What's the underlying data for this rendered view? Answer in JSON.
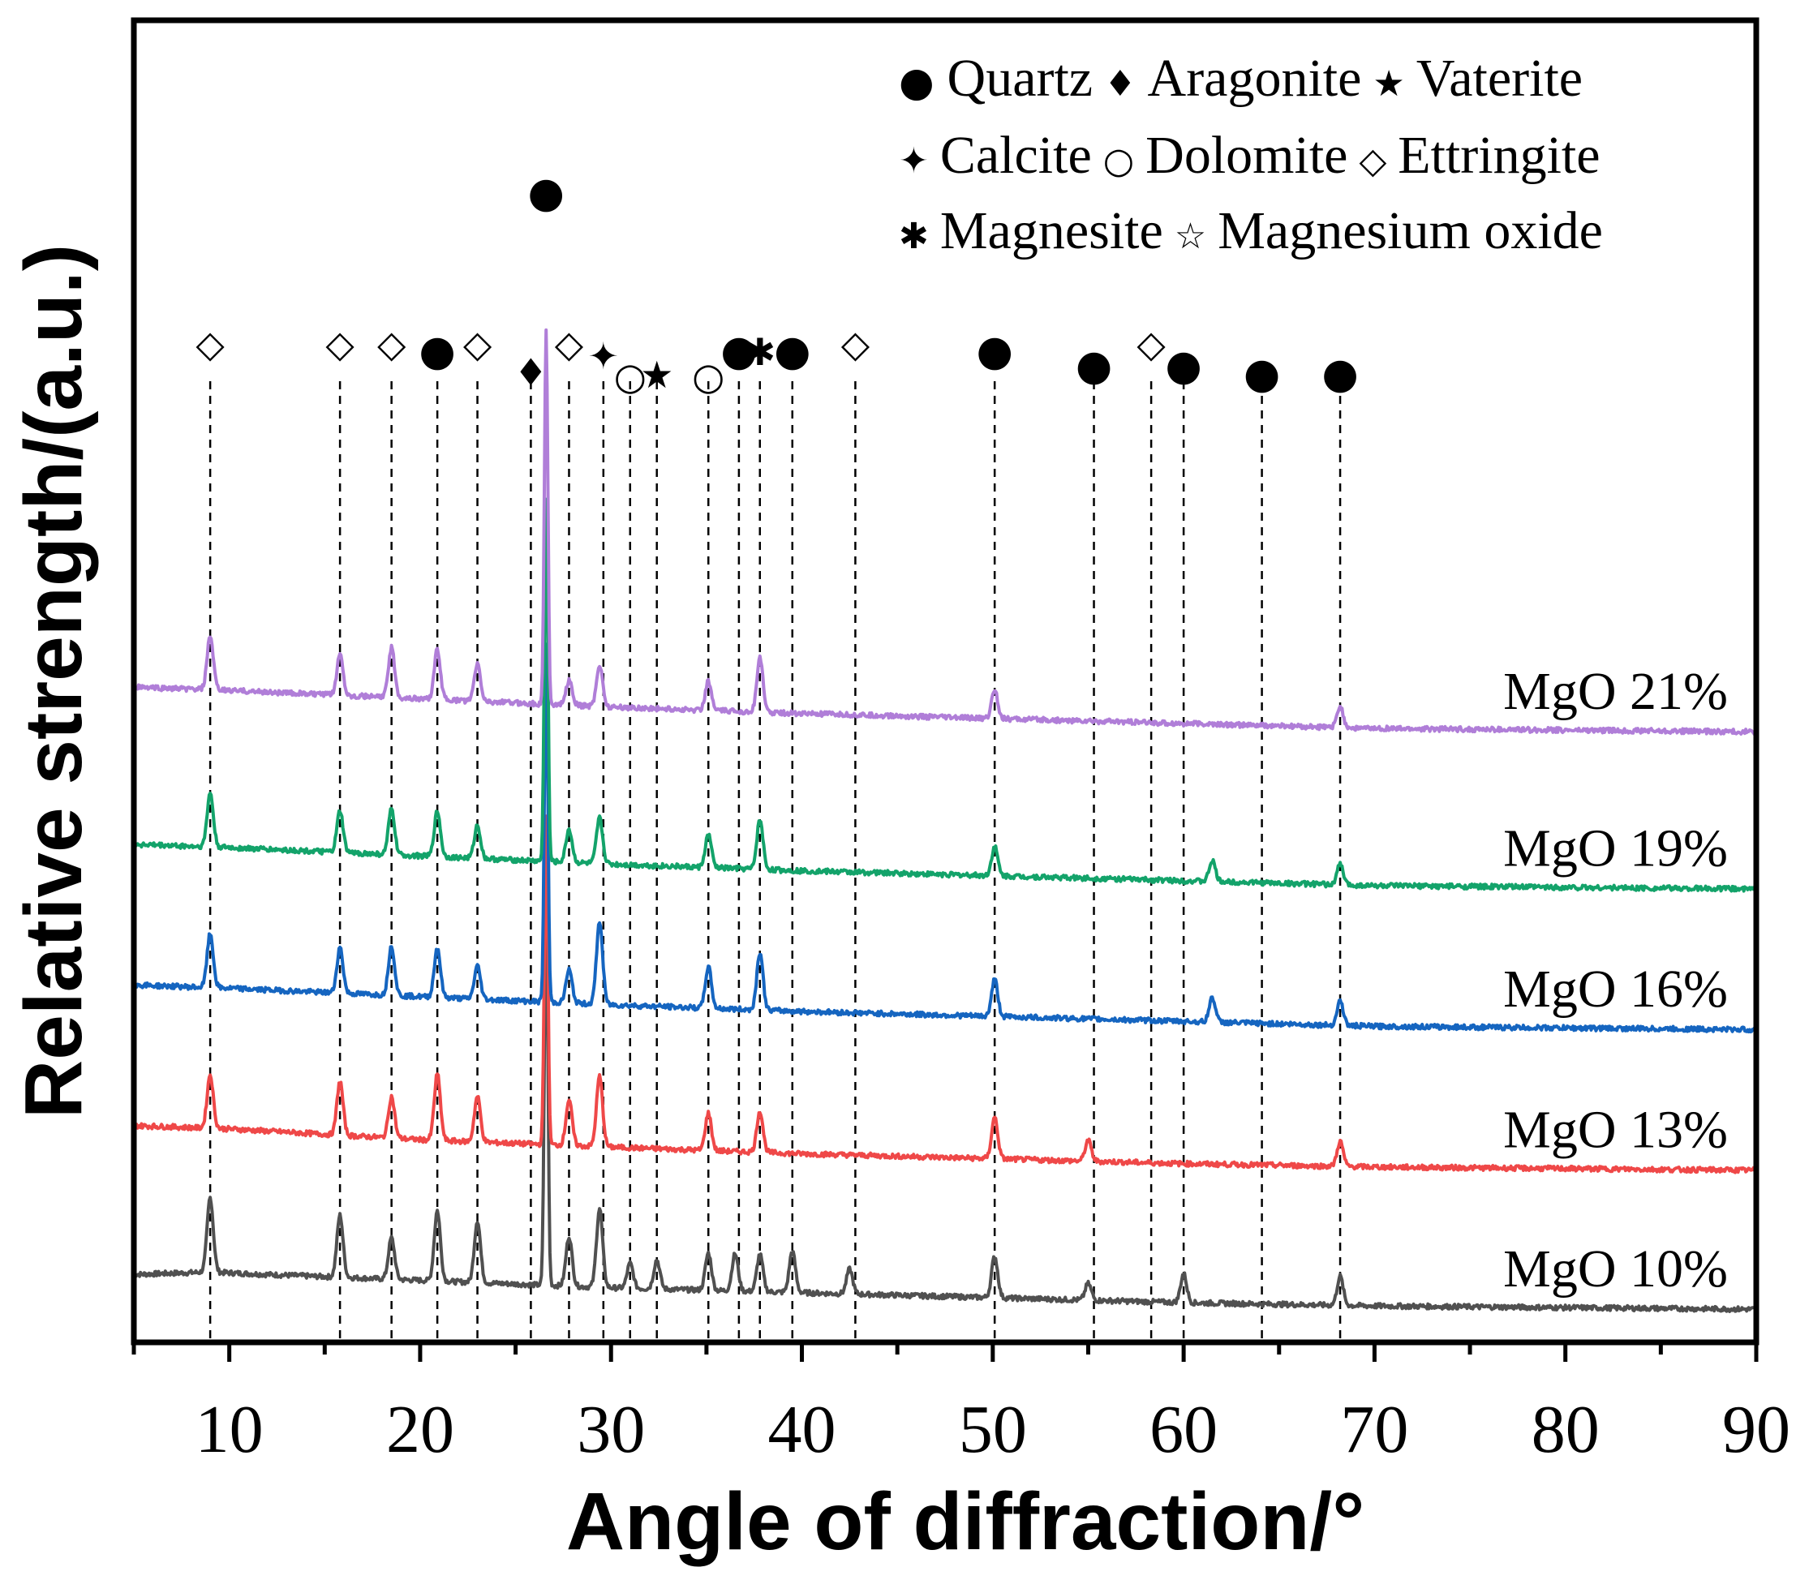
{
  "chart_data": {
    "type": "line",
    "title": "",
    "xlabel": "Angle of diffraction/°",
    "ylabel": "Relative strength/(a.u.)",
    "xlim": [
      5,
      90
    ],
    "xticks": [
      10,
      20,
      30,
      40,
      50,
      60,
      70,
      80,
      90
    ],
    "yticks": [],
    "grid": false,
    "y_units": "relative intensity, stacked with vertical offset",
    "series": [
      {
        "name": "MgO 10%",
        "color": "#505050",
        "offset": 0.3,
        "points": [
          [
            5,
            0.52
          ],
          [
            9,
            0.55
          ],
          [
            12,
            0.52
          ],
          [
            20,
            0.45
          ],
          [
            30,
            0.36
          ],
          [
            40,
            0.3
          ],
          [
            50,
            0.24
          ],
          [
            60,
            0.18
          ],
          [
            70,
            0.14
          ],
          [
            90,
            0.1
          ]
        ],
        "peaks": [
          [
            9.0,
            0.9
          ],
          [
            15.8,
            0.75
          ],
          [
            18.5,
            0.5
          ],
          [
            20.9,
            0.85
          ],
          [
            23.0,
            0.75
          ],
          [
            26.6,
            4.8
          ],
          [
            27.8,
            0.6
          ],
          [
            29.4,
            0.95
          ],
          [
            31.0,
            0.3
          ],
          [
            32.4,
            0.35
          ],
          [
            35.1,
            0.45
          ],
          [
            36.5,
            0.45
          ],
          [
            37.8,
            0.45
          ],
          [
            39.5,
            0.5
          ],
          [
            42.5,
            0.3
          ],
          [
            50.1,
            0.5
          ],
          [
            55.0,
            0.2
          ],
          [
            60.0,
            0.35
          ],
          [
            68.2,
            0.35
          ]
        ]
      },
      {
        "name": "MgO 13%",
        "color": "#ef4848",
        "offset": 2.0,
        "points": [
          [
            5,
            0.62
          ],
          [
            10,
            0.58
          ],
          [
            20,
            0.45
          ],
          [
            30,
            0.36
          ],
          [
            40,
            0.28
          ],
          [
            50,
            0.22
          ],
          [
            60,
            0.16
          ],
          [
            70,
            0.12
          ],
          [
            90,
            0.08
          ]
        ],
        "peaks": [
          [
            9.0,
            0.65
          ],
          [
            15.8,
            0.65
          ],
          [
            18.5,
            0.5
          ],
          [
            20.9,
            0.8
          ],
          [
            23.0,
            0.55
          ],
          [
            26.6,
            4.0
          ],
          [
            27.8,
            0.55
          ],
          [
            29.4,
            0.85
          ],
          [
            35.1,
            0.45
          ],
          [
            37.8,
            0.5
          ],
          [
            50.1,
            0.5
          ],
          [
            55.0,
            0.25
          ],
          [
            68.2,
            0.3
          ]
        ]
      },
      {
        "name": "MgO 16%",
        "color": "#1565c0",
        "offset": 3.7,
        "points": [
          [
            5,
            0.62
          ],
          [
            10,
            0.58
          ],
          [
            20,
            0.48
          ],
          [
            30,
            0.38
          ],
          [
            40,
            0.3
          ],
          [
            50,
            0.24
          ],
          [
            60,
            0.18
          ],
          [
            70,
            0.12
          ],
          [
            90,
            0.08
          ]
        ],
        "peaks": [
          [
            9.0,
            0.65
          ],
          [
            15.8,
            0.55
          ],
          [
            18.5,
            0.6
          ],
          [
            20.9,
            0.6
          ],
          [
            23.0,
            0.4
          ],
          [
            26.6,
            4.3
          ],
          [
            27.8,
            0.4
          ],
          [
            29.4,
            1.0
          ],
          [
            35.1,
            0.5
          ],
          [
            37.8,
            0.7
          ],
          [
            50.1,
            0.45
          ],
          [
            61.5,
            0.3
          ],
          [
            68.2,
            0.3
          ]
        ]
      },
      {
        "name": "MgO 19%",
        "color": "#13a36a",
        "offset": 5.4,
        "points": [
          [
            5,
            0.62
          ],
          [
            10,
            0.58
          ],
          [
            20,
            0.48
          ],
          [
            30,
            0.38
          ],
          [
            40,
            0.3
          ],
          [
            50,
            0.24
          ],
          [
            60,
            0.18
          ],
          [
            70,
            0.12
          ],
          [
            90,
            0.08
          ]
        ],
        "peaks": [
          [
            9.0,
            0.65
          ],
          [
            15.8,
            0.5
          ],
          [
            18.5,
            0.55
          ],
          [
            20.9,
            0.55
          ],
          [
            23.0,
            0.4
          ],
          [
            26.6,
            4.4
          ],
          [
            27.8,
            0.4
          ],
          [
            29.4,
            0.55
          ],
          [
            35.1,
            0.4
          ],
          [
            37.8,
            0.6
          ],
          [
            50.1,
            0.35
          ],
          [
            61.5,
            0.25
          ],
          [
            68.2,
            0.25
          ]
        ]
      },
      {
        "name": "MgO 21%",
        "color": "#b07ed8",
        "offset": 7.3,
        "points": [
          [
            5,
            0.62
          ],
          [
            10,
            0.58
          ],
          [
            20,
            0.48
          ],
          [
            30,
            0.38
          ],
          [
            40,
            0.3
          ],
          [
            50,
            0.24
          ],
          [
            60,
            0.18
          ],
          [
            70,
            0.12
          ],
          [
            90,
            0.08
          ]
        ],
        "peaks": [
          [
            9.0,
            0.65
          ],
          [
            15.8,
            0.5
          ],
          [
            18.5,
            0.6
          ],
          [
            20.9,
            0.6
          ],
          [
            23.0,
            0.45
          ],
          [
            26.6,
            4.5
          ],
          [
            27.8,
            0.3
          ],
          [
            29.4,
            0.5
          ],
          [
            35.1,
            0.35
          ],
          [
            37.8,
            0.65
          ],
          [
            50.1,
            0.35
          ],
          [
            68.2,
            0.25
          ]
        ]
      }
    ],
    "phase_lines_x": [
      9.0,
      15.8,
      18.5,
      20.9,
      23.0,
      25.8,
      27.8,
      29.6,
      31.0,
      32.4,
      35.1,
      36.7,
      37.8,
      39.5,
      42.8,
      50.1,
      55.3,
      58.3,
      60.0,
      64.1,
      68.2
    ],
    "phase_markers": [
      {
        "x": 9.0,
        "phase": "Ettringite",
        "symbol": "◇"
      },
      {
        "x": 15.8,
        "phase": "Ettringite",
        "symbol": "◇"
      },
      {
        "x": 18.5,
        "phase": "Ettringite",
        "symbol": "◇"
      },
      {
        "x": 20.9,
        "phase": "Quartz",
        "symbol": "●"
      },
      {
        "x": 23.0,
        "phase": "Ettringite",
        "symbol": "◇"
      },
      {
        "x": 25.8,
        "phase": "Aragonite",
        "symbol": "♦"
      },
      {
        "x": 26.6,
        "phase": "Quartz",
        "symbol": "●"
      },
      {
        "x": 27.8,
        "phase": "Ettringite",
        "symbol": "◇"
      },
      {
        "x": 29.6,
        "phase": "Calcite",
        "symbol": "✦"
      },
      {
        "x": 31.0,
        "phase": "Dolomite",
        "symbol": "○"
      },
      {
        "x": 32.4,
        "phase": "Vaterite",
        "symbol": "★"
      },
      {
        "x": 35.1,
        "phase": "Dolomite",
        "symbol": "○"
      },
      {
        "x": 36.7,
        "phase": "Quartz",
        "symbol": "●"
      },
      {
        "x": 37.8,
        "phase": "Magnesite",
        "symbol": "✱"
      },
      {
        "x": 39.5,
        "phase": "Quartz",
        "symbol": "●"
      },
      {
        "x": 42.8,
        "phase": "Ettringite",
        "symbol": "◇"
      },
      {
        "x": 50.1,
        "phase": "Quartz",
        "symbol": "●"
      },
      {
        "x": 55.3,
        "phase": "Quartz",
        "symbol": "●"
      },
      {
        "x": 58.3,
        "phase": "Ettringite",
        "symbol": "◇"
      },
      {
        "x": 60.0,
        "phase": "Quartz",
        "symbol": "●"
      },
      {
        "x": 64.1,
        "phase": "Quartz",
        "symbol": "●"
      },
      {
        "x": 68.2,
        "phase": "Quartz",
        "symbol": "●"
      }
    ],
    "legend": {
      "placement": "top-right",
      "rows": [
        [
          {
            "symbol": "●",
            "label": "Quartz"
          },
          {
            "symbol": "♦",
            "label": "Aragonite"
          },
          {
            "symbol": "★",
            "label": "Vaterite"
          }
        ],
        [
          {
            "symbol": "✦",
            "label": "Calcite"
          },
          {
            "symbol": "○",
            "label": "Dolomite"
          },
          {
            "symbol": "◇",
            "label": "Ettringite"
          }
        ],
        [
          {
            "symbol": "✱",
            "label": "Magnesite"
          },
          {
            "symbol": "☆",
            "label": "Magnesium oxide"
          }
        ]
      ]
    }
  }
}
